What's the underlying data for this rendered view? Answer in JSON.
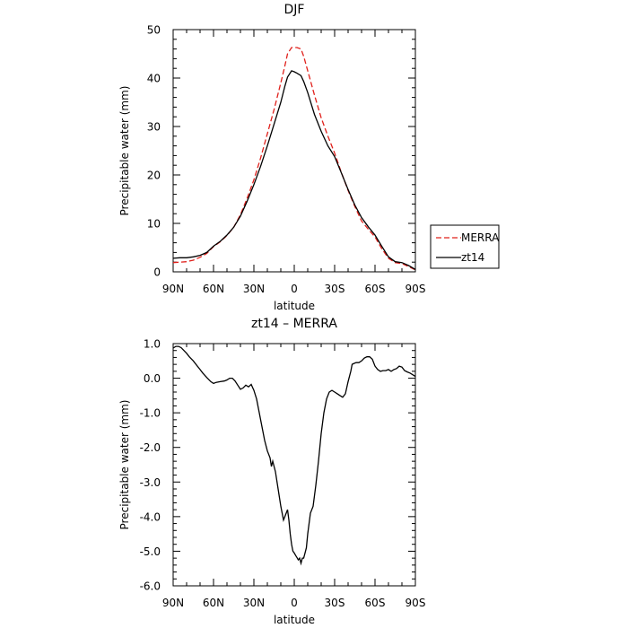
{
  "chart_data": [
    {
      "type": "line",
      "title": "DJF",
      "xlabel": "latitude",
      "ylabel": "Precipitable water (mm)",
      "xlim": [
        90,
        -90
      ],
      "ylim": [
        0,
        50
      ],
      "x_ticks": [
        90,
        60,
        30,
        0,
        -30,
        -60,
        -90
      ],
      "x_tick_labels": [
        "90N",
        "60N",
        "30N",
        "0",
        "30S",
        "60S",
        "90S"
      ],
      "y_ticks": [
        0,
        10,
        20,
        30,
        40,
        50
      ],
      "y_tick_labels": [
        "0",
        "10",
        "20",
        "30",
        "40",
        "50"
      ],
      "legend_position": "right",
      "series": [
        {
          "name": "MERRA",
          "color": "#e0201b",
          "dash": "dashed",
          "x": [
            90,
            85,
            80,
            75,
            70,
            65,
            60,
            55,
            50,
            45,
            40,
            35,
            30,
            25,
            20,
            15,
            10,
            7,
            5,
            2,
            0,
            -2,
            -5,
            -7,
            -10,
            -15,
            -20,
            -25,
            -30,
            -35,
            -40,
            -45,
            -50,
            -55,
            -60,
            -65,
            -70,
            -75,
            -80,
            -85,
            -90
          ],
          "values": [
            1.9,
            2.0,
            2.1,
            2.4,
            3.0,
            3.8,
            5.2,
            6.2,
            7.5,
            9.2,
            11.8,
            15.2,
            19.0,
            23.5,
            28.5,
            33.5,
            39.0,
            42.5,
            45.0,
            46.3,
            46.3,
            46.3,
            46.0,
            44.5,
            41.5,
            36.5,
            31.8,
            28.0,
            24.5,
            20.5,
            16.8,
            13.5,
            10.5,
            8.8,
            7.2,
            4.8,
            2.8,
            1.9,
            1.7,
            1.1,
            0.4
          ]
        },
        {
          "name": "zt14",
          "color": "#000000",
          "dash": "solid",
          "x": [
            90,
            85,
            80,
            75,
            70,
            65,
            60,
            55,
            50,
            45,
            40,
            35,
            30,
            25,
            20,
            15,
            10,
            7,
            5,
            2,
            0,
            -2,
            -5,
            -7,
            -10,
            -15,
            -20,
            -25,
            -30,
            -35,
            -40,
            -45,
            -50,
            -55,
            -60,
            -65,
            -70,
            -75,
            -80,
            -85,
            -90
          ],
          "values": [
            2.8,
            2.9,
            2.9,
            3.1,
            3.4,
            4.0,
            5.3,
            6.3,
            7.6,
            9.2,
            11.5,
            14.6,
            18.0,
            21.8,
            26.0,
            30.5,
            35.0,
            38.3,
            40.2,
            41.5,
            41.3,
            41.0,
            40.5,
            39.3,
            37.0,
            32.5,
            29.0,
            26.0,
            23.8,
            20.4,
            17.0,
            13.8,
            11.2,
            9.3,
            7.6,
            5.3,
            3.1,
            2.1,
            1.9,
            1.3,
            0.5
          ]
        }
      ]
    },
    {
      "type": "line",
      "title": "zt14 – MERRA",
      "xlabel": "latitude",
      "ylabel": "Precipitable water (mm)",
      "xlim": [
        90,
        -90
      ],
      "ylim": [
        -6.0,
        1.0
      ],
      "x_ticks": [
        90,
        60,
        30,
        0,
        -30,
        -60,
        -90
      ],
      "x_tick_labels": [
        "90N",
        "60N",
        "30N",
        "0",
        "30S",
        "60S",
        "90S"
      ],
      "y_ticks": [
        1.0,
        0.0,
        -1.0,
        -2.0,
        -3.0,
        -4.0,
        -5.0,
        -6.0
      ],
      "y_tick_labels": [
        "1.0",
        "0.0",
        "-1.0",
        "-2.0",
        "-3.0",
        "-4.0",
        "-5.0",
        "-6.0"
      ],
      "series": [
        {
          "name": "",
          "color": "#000000",
          "dash": "solid",
          "x": [
            90,
            88,
            86,
            84,
            82,
            80,
            78,
            75,
            72,
            70,
            68,
            65,
            62,
            60,
            58,
            55,
            52,
            50,
            48,
            46,
            44,
            42,
            40,
            38,
            36,
            34,
            32,
            30,
            28,
            26,
            24,
            22,
            20,
            18,
            17,
            16,
            14,
            12,
            10,
            8,
            6,
            5,
            4,
            3,
            2,
            1,
            0,
            -1,
            -2,
            -3,
            -4,
            -5,
            -6,
            -7,
            -8,
            -9,
            -10,
            -11,
            -12,
            -14,
            -16,
            -18,
            -20,
            -22,
            -24,
            -26,
            -28,
            -30,
            -32,
            -34,
            -36,
            -38,
            -40,
            -42,
            -43,
            -44,
            -46,
            -48,
            -50,
            -52,
            -54,
            -56,
            -58,
            -60,
            -62,
            -64,
            -66,
            -68,
            -70,
            -72,
            -74,
            -76,
            -78,
            -80,
            -82,
            -84,
            -86,
            -88,
            -90
          ],
          "values": [
            0.87,
            0.92,
            0.92,
            0.88,
            0.8,
            0.72,
            0.62,
            0.5,
            0.35,
            0.25,
            0.15,
            0.02,
            -0.1,
            -0.15,
            -0.12,
            -0.1,
            -0.08,
            -0.05,
            0.0,
            0.0,
            -0.08,
            -0.2,
            -0.32,
            -0.28,
            -0.2,
            -0.25,
            -0.18,
            -0.35,
            -0.6,
            -1.0,
            -1.4,
            -1.8,
            -2.1,
            -2.3,
            -2.55,
            -2.4,
            -2.7,
            -3.2,
            -3.7,
            -4.1,
            -3.9,
            -3.8,
            -4.1,
            -4.5,
            -4.8,
            -5.0,
            -5.05,
            -5.12,
            -5.18,
            -5.25,
            -5.2,
            -5.35,
            -5.2,
            -5.2,
            -5.05,
            -4.9,
            -4.5,
            -4.2,
            -3.9,
            -3.7,
            -3.1,
            -2.4,
            -1.6,
            -1.0,
            -0.6,
            -0.4,
            -0.35,
            -0.4,
            -0.45,
            -0.5,
            -0.55,
            -0.45,
            -0.1,
            0.2,
            0.4,
            0.42,
            0.45,
            0.45,
            0.5,
            0.58,
            0.62,
            0.62,
            0.55,
            0.35,
            0.25,
            0.2,
            0.22,
            0.22,
            0.25,
            0.2,
            0.25,
            0.28,
            0.35,
            0.32,
            0.22,
            0.18,
            0.15,
            0.1,
            0.05
          ]
        }
      ]
    }
  ]
}
